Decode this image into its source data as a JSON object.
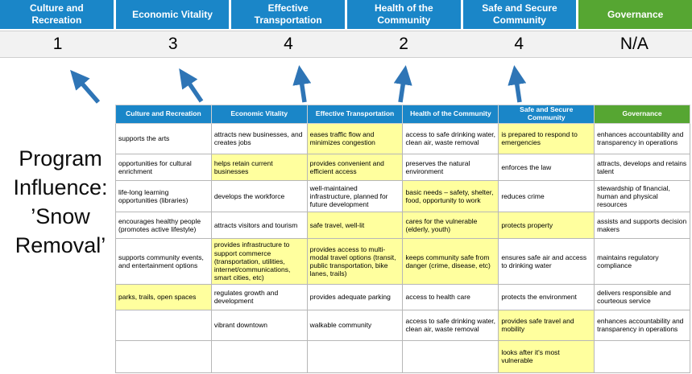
{
  "program_label": "Program\nInfluence:\n’Snow\nRemoval’",
  "colors": {
    "pillar_blue": "#1a86c8",
    "pillar_green": "#56a632",
    "highlight_yellow": "#ffff9e",
    "arrow_blue": "#2e75b6",
    "score_bg": "#f2f2f2"
  },
  "pillars": [
    {
      "label": "Culture and Recreation",
      "score": "1",
      "theme": "blue"
    },
    {
      "label": "Economic Vitality",
      "score": "3",
      "theme": "blue"
    },
    {
      "label": "Effective Transportation",
      "score": "4",
      "theme": "blue"
    },
    {
      "label": "Health of the Community",
      "score": "2",
      "theme": "blue"
    },
    {
      "label": "Safe and Secure Community",
      "score": "4",
      "theme": "blue"
    },
    {
      "label": "Governance",
      "score": "N/A",
      "theme": "green"
    }
  ],
  "table": {
    "rows": [
      [
        {
          "t": "supports the arts"
        },
        {
          "t": "attracts new businesses, and creates jobs"
        },
        {
          "t": "eases traffic flow and minimizes congestion",
          "hl": true
        },
        {
          "t": "access to safe drinking water, clean air, waste removal"
        },
        {
          "t": "is prepared to respond to emergencies",
          "hl": true
        },
        {
          "t": "enhances accountability and transparency in operations"
        }
      ],
      [
        {
          "t": "opportunities for cultural enrichment"
        },
        {
          "t": "helps retain current businesses",
          "hl": true
        },
        {
          "t": "provides convenient and efficient access",
          "hl": true
        },
        {
          "t": "preserves the natural environment"
        },
        {
          "t": "enforces the law"
        },
        {
          "t": "attracts, develops and retains talent"
        }
      ],
      [
        {
          "t": "life-long learning opportunities (libraries)"
        },
        {
          "t": "develops the workforce"
        },
        {
          "t": "well-maintained infrastructure, planned for future development"
        },
        {
          "t": "basic needs – safety, shelter, food, opportunity to work",
          "hl": true
        },
        {
          "t": "reduces crime"
        },
        {
          "t": "stewardship of financial, human and physical resources"
        }
      ],
      [
        {
          "t": "encourages healthy people (promotes active lifestyle)"
        },
        {
          "t": "attracts visitors and tourism"
        },
        {
          "t": "safe travel, well-lit",
          "hl": true
        },
        {
          "t": "cares for the vulnerable (elderly, youth)",
          "hl": true
        },
        {
          "t": "protects property",
          "hl": true
        },
        {
          "t": "assists and supports decision makers"
        }
      ],
      [
        {
          "t": "supports community events, and entertainment options"
        },
        {
          "t": "provides infrastructure to support commerce (transportation, utilities, internet/communications, smart cities, etc)",
          "hl": true
        },
        {
          "t": "provides access to multi-modal travel options (transit, public transportation, bike lanes, trails)",
          "hl": true
        },
        {
          "t": "keeps community safe from danger (crime, disease, etc)",
          "hl": true
        },
        {
          "t": "ensures safe air and access to drinking water"
        },
        {
          "t": "maintains regulatory compliance"
        }
      ],
      [
        {
          "t": "parks, trails, open spaces",
          "hl": true
        },
        {
          "t": "regulates growth and development"
        },
        {
          "t": "provides adequate parking"
        },
        {
          "t": "access to health care"
        },
        {
          "t": "protects the environment"
        },
        {
          "t": "delivers responsible and courteous service"
        }
      ],
      [
        {
          "t": ""
        },
        {
          "t": "vibrant downtown"
        },
        {
          "t": "walkable community"
        },
        {
          "t": "access to safe drinking water, clean air, waste removal"
        },
        {
          "t": "provides safe travel and mobility",
          "hl": true
        },
        {
          "t": "enhances accountability and transparency in operations"
        }
      ],
      [
        {
          "t": ""
        },
        {
          "t": ""
        },
        {
          "t": ""
        },
        {
          "t": ""
        },
        {
          "t": "looks after it's most vulnerable",
          "hl": true
        },
        {
          "t": ""
        }
      ]
    ]
  }
}
